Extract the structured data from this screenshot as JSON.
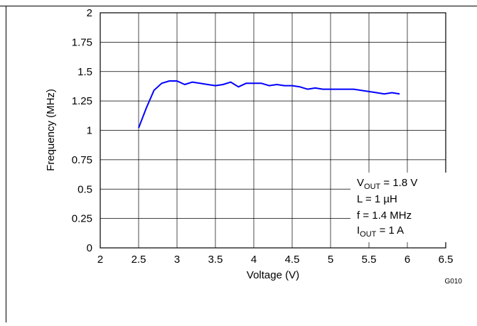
{
  "chart_data": {
    "type": "line",
    "title": "",
    "xlabel": "Voltage (V)",
    "ylabel": "Frequency (MHz)",
    "xlim": [
      2,
      6.5
    ],
    "ylim": [
      0,
      2
    ],
    "xticks": [
      "2",
      "2.5",
      "3",
      "3.5",
      "4",
      "4.5",
      "5",
      "5.5",
      "6",
      "6.5"
    ],
    "yticks": [
      "0",
      "0.25",
      "0.5",
      "0.75",
      "1",
      "1.25",
      "1.5",
      "1.75",
      "2"
    ],
    "grid": true,
    "series": [
      {
        "color": "#0000ff",
        "x": [
          2.5,
          2.6,
          2.7,
          2.8,
          2.9,
          3.0,
          3.1,
          3.2,
          3.3,
          3.4,
          3.5,
          3.6,
          3.7,
          3.8,
          3.9,
          4.0,
          4.1,
          4.2,
          4.3,
          4.4,
          4.5,
          4.6,
          4.7,
          4.8,
          4.9,
          5.0,
          5.1,
          5.2,
          5.3,
          5.4,
          5.5,
          5.6,
          5.7,
          5.8,
          5.9
        ],
        "y": [
          1.02,
          1.19,
          1.34,
          1.4,
          1.42,
          1.42,
          1.39,
          1.41,
          1.4,
          1.39,
          1.38,
          1.39,
          1.41,
          1.37,
          1.4,
          1.4,
          1.4,
          1.38,
          1.39,
          1.38,
          1.38,
          1.37,
          1.35,
          1.36,
          1.35,
          1.35,
          1.35,
          1.35,
          1.35,
          1.34,
          1.33,
          1.32,
          1.31,
          1.32,
          1.31
        ]
      }
    ],
    "annotation": {
      "vout_label": "V",
      "vout_sub": "OUT",
      "vout_value": " = 1.8 V",
      "inductor": "L = 1 µH",
      "freq": "f = 1.4 MHz",
      "iout_label": "I",
      "iout_sub": "OUT",
      "iout_value": " = 1 A"
    },
    "figure_code": "G010"
  }
}
